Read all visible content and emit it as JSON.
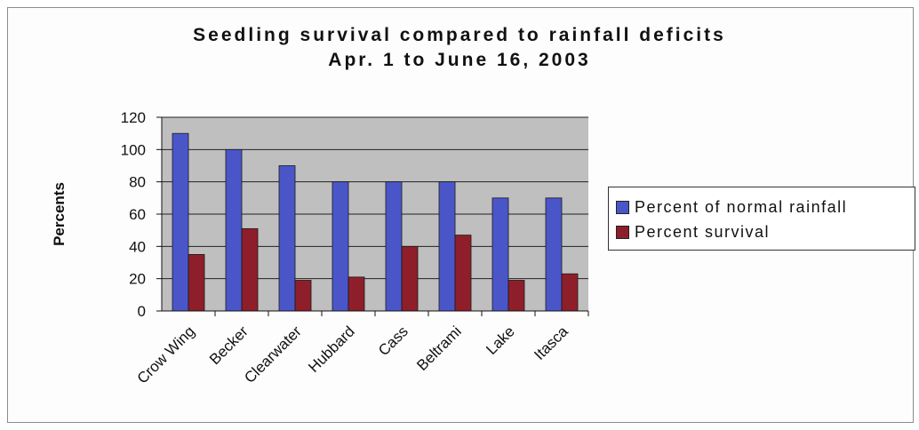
{
  "chart_data": {
    "type": "bar",
    "title": "Seedling survival compared to rainfall deficits",
    "subtitle": "Apr. 1 to June 16, 2003",
    "xlabel": "",
    "ylabel": "Percents",
    "ylim": [
      0,
      120
    ],
    "yticks": [
      0,
      20,
      40,
      60,
      80,
      100,
      120
    ],
    "grid": true,
    "legend_position": "right",
    "categories": [
      "Crow Wing",
      "Becker",
      "Clearwater",
      "Hubbard",
      "Cass",
      "Beltrami",
      "Lake",
      "Itasca"
    ],
    "series": [
      {
        "name": "Percent of normal rainfall",
        "color": "#4a56c8",
        "values": [
          110,
          100,
          90,
          80,
          80,
          80,
          70,
          70
        ]
      },
      {
        "name": "Percent survival",
        "color": "#8e1f2a",
        "values": [
          35,
          51,
          19,
          21,
          40,
          47,
          19,
          23
        ]
      }
    ]
  },
  "colors": {
    "plot_background": "#bfbfbf",
    "gridline": "#222222"
  }
}
